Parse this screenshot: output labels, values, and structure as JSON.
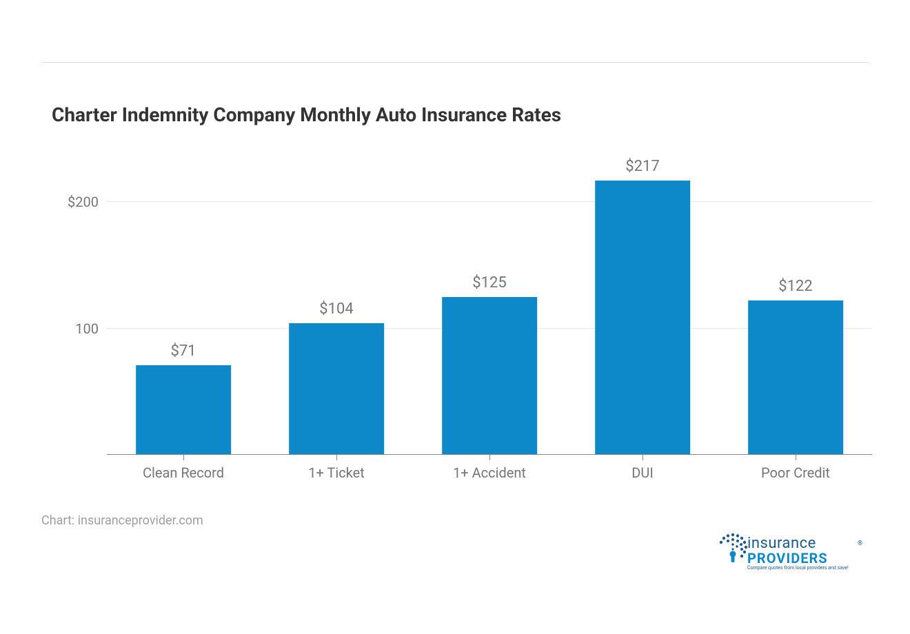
{
  "title": "Charter Indemnity Company Monthly Auto Insurance Rates",
  "source": "Chart: insuranceprovider.com",
  "chart": {
    "type": "bar",
    "categories": [
      "Clean Record",
      "1+ Ticket",
      "1+ Accident",
      "DUI",
      "Poor Credit"
    ],
    "values": [
      71,
      104,
      125,
      217,
      122
    ],
    "value_labels": [
      "$71",
      "$104",
      "$125",
      "$217",
      "$122"
    ],
    "bar_color": "#0d89c9",
    "ymax": 240,
    "yticks": [
      100,
      200
    ],
    "ytick_labels": [
      "100",
      "$200"
    ],
    "grid_color": "#e8e8e8",
    "axis_color": "#888888",
    "background_color": "#ffffff",
    "title_fontsize": 28,
    "title_color": "#333333",
    "tick_fontsize": 20,
    "value_fontsize": 22,
    "label_color": "#757575",
    "bar_width_ratio": 0.62
  },
  "logo": {
    "line1": "insurance",
    "line2": "PROVIDERS",
    "registered": "®",
    "tagline": "Compare quotes from local providers and save!",
    "icon_color": "#1a5a8e",
    "text1_color": "#1a5a8e",
    "text2_color": "#0d89c9"
  }
}
